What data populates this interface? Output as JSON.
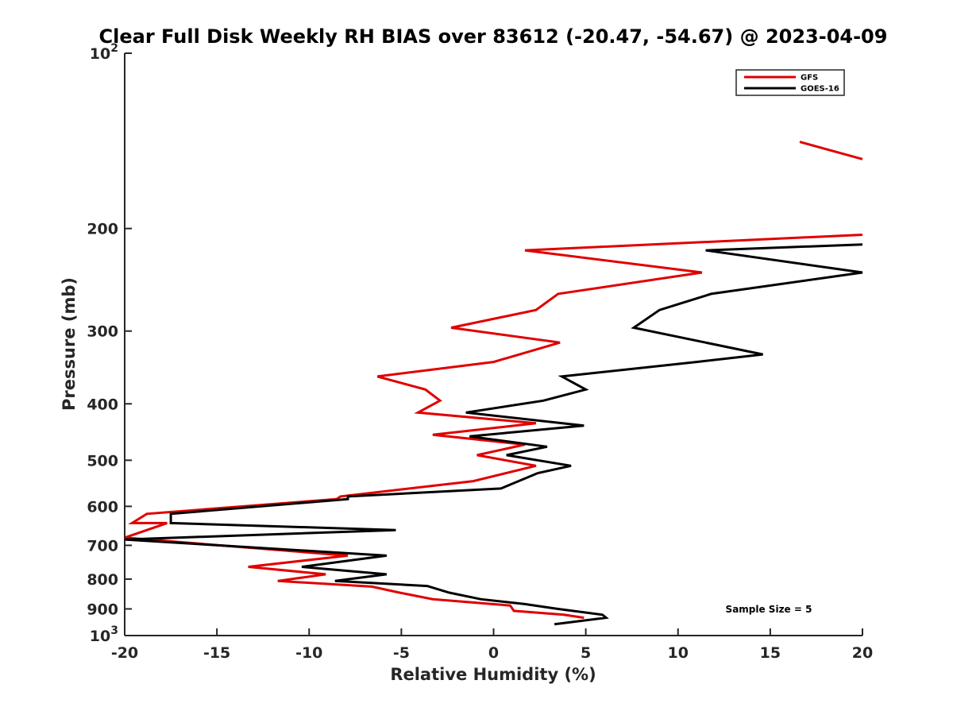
{
  "chart_data": {
    "type": "line",
    "title": "Clear Full Disk Weekly RH BIAS over 83612 (-20.47, -54.67) @ 2023-04-09",
    "xlabel": "Relative Humidity (%)",
    "ylabel": "Pressure (mb)",
    "xlim": [
      -20,
      20
    ],
    "ylim": [
      100,
      1000
    ],
    "y_scale": "log",
    "y_reversed": true,
    "grid": false,
    "legend_position": "top-right",
    "x_ticks": [
      {
        "value": -20,
        "label": "-20"
      },
      {
        "value": -15,
        "label": "-15"
      },
      {
        "value": -10,
        "label": "-10"
      },
      {
        "value": -5,
        "label": "-5"
      },
      {
        "value": 0,
        "label": "0"
      },
      {
        "value": 5,
        "label": "5"
      },
      {
        "value": 10,
        "label": "10"
      },
      {
        "value": 15,
        "label": "15"
      },
      {
        "value": 20,
        "label": "20"
      }
    ],
    "y_ticks": [
      {
        "value": 100,
        "label": "10",
        "sup": "2"
      },
      {
        "value": 200,
        "label": "200"
      },
      {
        "value": 300,
        "label": "300"
      },
      {
        "value": 400,
        "label": "400"
      },
      {
        "value": 500,
        "label": "500"
      },
      {
        "value": 600,
        "label": "600"
      },
      {
        "value": 700,
        "label": "700"
      },
      {
        "value": 800,
        "label": "800"
      },
      {
        "value": 900,
        "label": "900"
      },
      {
        "value": 1000,
        "label": "10",
        "sup": "3"
      }
    ],
    "annotation": "Sample Size = 5",
    "series": [
      {
        "name": "GFS",
        "color": "#e00000",
        "segments": [
          [
            [
              16.6,
              142
            ],
            [
              20,
              152
            ]
          ],
          [
            [
              20,
              205
            ],
            [
              1.7,
              218
            ],
            [
              11.3,
              238
            ],
            [
              3.5,
              259
            ],
            [
              2.3,
              276
            ],
            [
              -2.3,
              296
            ],
            [
              3.6,
              314
            ],
            [
              0.0,
              339
            ],
            [
              -6.3,
              359
            ],
            [
              -3.7,
              378
            ],
            [
              -2.9,
              395
            ],
            [
              -4.1,
              414
            ],
            [
              2.3,
              432
            ],
            [
              -3.3,
              452
            ],
            [
              1.7,
              470
            ],
            [
              -0.9,
              490
            ],
            [
              2.3,
              511
            ],
            [
              -1.1,
              543
            ],
            [
              -8.3,
              577
            ],
            [
              -8.5,
              583
            ],
            [
              -18.8,
              618
            ],
            [
              -19.6,
              641
            ],
            [
              -17.7,
              641
            ],
            [
              -20,
              679
            ],
            [
              -7.9,
              729
            ],
            [
              -13.3,
              762
            ],
            [
              -9.1,
              785
            ],
            [
              -11.7,
              806
            ],
            [
              -6.6,
              824
            ],
            [
              -5.1,
              844
            ],
            [
              -3.3,
              866
            ],
            [
              0.9,
              888
            ],
            [
              1.1,
              907
            ],
            [
              3.8,
              921
            ],
            [
              4.9,
              932
            ]
          ]
        ]
      },
      {
        "name": "GOES-16",
        "color": "#000000",
        "segments": [
          [
            [
              20,
              213
            ],
            [
              11.5,
              218
            ],
            [
              20,
              238
            ],
            [
              11.8,
              259
            ],
            [
              9.0,
              276
            ],
            [
              7.6,
              296
            ],
            [
              14.6,
              329
            ],
            [
              11.0,
              339
            ],
            [
              3.7,
              359
            ],
            [
              5.0,
              378
            ],
            [
              2.7,
              395
            ],
            [
              -1.5,
              414
            ],
            [
              4.9,
              436
            ],
            [
              -1.3,
              455
            ],
            [
              2.9,
              474
            ],
            [
              0.7,
              490
            ],
            [
              4.2,
              511
            ],
            [
              2.4,
              526
            ],
            [
              0.4,
              559
            ],
            [
              -7.9,
              577
            ],
            [
              -7.9,
              583
            ],
            [
              -17.5,
              618
            ],
            [
              -17.5,
              641
            ],
            [
              -5.3,
              659
            ],
            [
              -20,
              684
            ],
            [
              -5.8,
              729
            ],
            [
              -10.4,
              762
            ],
            [
              -5.8,
              785
            ],
            [
              -8.6,
              806
            ],
            [
              -3.6,
              822
            ],
            [
              -2.4,
              844
            ],
            [
              -0.7,
              866
            ],
            [
              1.7,
              883
            ],
            [
              3.5,
              900
            ],
            [
              5.9,
              921
            ],
            [
              6.1,
              932
            ],
            [
              3.3,
              956
            ]
          ]
        ]
      }
    ]
  }
}
